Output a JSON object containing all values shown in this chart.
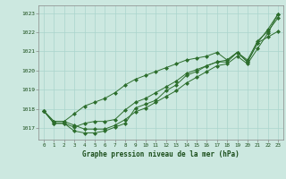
{
  "bg_color": "#cce8e0",
  "grid_color": "#aad4cc",
  "line_color": "#2d6e2d",
  "marker_color": "#2d6e2d",
  "title": "Graphe pression niveau de la mer (hPa)",
  "title_color": "#1a4d1a",
  "xlim": [
    -0.5,
    23.5
  ],
  "ylim": [
    1016.4,
    1023.4
  ],
  "yticks": [
    1017,
    1018,
    1019,
    1020,
    1021,
    1022,
    1023
  ],
  "xticks": [
    0,
    1,
    2,
    3,
    4,
    5,
    6,
    7,
    8,
    9,
    10,
    11,
    12,
    13,
    14,
    15,
    16,
    17,
    18,
    19,
    20,
    21,
    22,
    23
  ],
  "series": [
    [
      1017.9,
      1017.25,
      1017.25,
      1016.85,
      1016.75,
      1016.75,
      1016.85,
      1017.05,
      1017.25,
      1018.05,
      1018.25,
      1018.45,
      1018.95,
      1019.25,
      1019.75,
      1019.95,
      1020.25,
      1020.45,
      1020.45,
      1020.95,
      1020.45,
      1021.45,
      1022.15,
      1022.95
    ],
    [
      1017.9,
      1017.25,
      1017.25,
      1017.05,
      1017.25,
      1017.35,
      1017.35,
      1017.45,
      1017.95,
      1018.35,
      1018.55,
      1018.85,
      1019.15,
      1019.45,
      1019.85,
      1020.05,
      1020.25,
      1020.45,
      1020.55,
      1020.95,
      1020.55,
      1021.55,
      1022.05,
      1022.75
    ],
    [
      1017.9,
      1017.35,
      1017.35,
      1017.75,
      1018.15,
      1018.35,
      1018.55,
      1018.85,
      1019.25,
      1019.55,
      1019.75,
      1019.95,
      1020.15,
      1020.35,
      1020.55,
      1020.65,
      1020.75,
      1020.95,
      1020.55,
      1020.95,
      1020.45,
      1021.45,
      1021.75,
      1022.05
    ],
    [
      1017.9,
      1017.35,
      1017.35,
      1017.15,
      1016.95,
      1016.95,
      1016.95,
      1017.15,
      1017.45,
      1017.85,
      1018.05,
      1018.35,
      1018.65,
      1018.95,
      1019.35,
      1019.65,
      1019.95,
      1020.25,
      1020.35,
      1020.75,
      1020.35,
      1021.15,
      1021.95,
      1022.95
    ]
  ]
}
